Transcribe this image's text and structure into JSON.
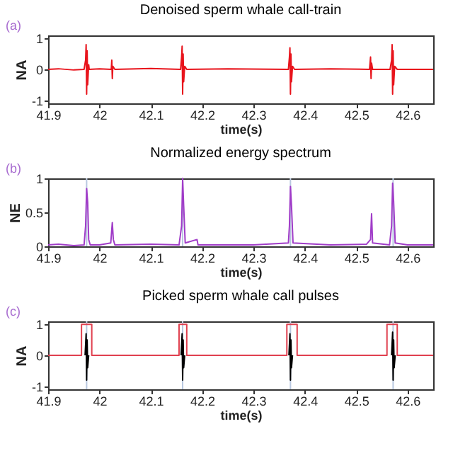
{
  "chart_data": [
    {
      "type": "line",
      "title": "Denoised sperm whale call-train",
      "xlabel": "time(s)",
      "ylabel": "NA",
      "xlim": [
        41.9,
        42.65
      ],
      "xticks": [
        41.9,
        42,
        42.1,
        42.2,
        42.3,
        42.4,
        42.5,
        42.6
      ],
      "ylim": [
        -1.1,
        1.1
      ],
      "yticks": [
        -1,
        0,
        1
      ],
      "annotations": [
        "(a)"
      ],
      "series": [
        {
          "color": "#e8141c",
          "x": [
            41.9,
            41.92,
            41.95,
            41.97,
            41.973,
            41.974,
            41.975,
            41.976,
            41.977,
            41.979,
            41.98,
            42.0,
            42.023,
            42.024,
            42.025,
            42.026,
            42.03,
            42.1,
            42.158,
            42.16,
            42.161,
            42.162,
            42.163,
            42.164,
            42.166,
            42.17,
            42.25,
            42.368,
            42.37,
            42.371,
            42.372,
            42.373,
            42.374,
            42.376,
            42.38,
            42.45,
            42.526,
            42.528,
            42.529,
            42.53,
            42.532,
            42.566,
            42.569,
            42.57,
            42.571,
            42.572,
            42.573,
            42.575,
            42.58,
            42.65
          ],
          "values": [
            0,
            0.02,
            -0.02,
            0,
            0.3,
            0.8,
            -0.8,
            0.6,
            -0.5,
            0.15,
            0,
            0.02,
            0,
            0.3,
            -0.3,
            0.1,
            0,
            0.03,
            0,
            0.4,
            0.75,
            -0.8,
            0.5,
            -0.4,
            0.1,
            0,
            0.02,
            0,
            0.4,
            0.7,
            -0.8,
            0.5,
            -0.4,
            0.1,
            0,
            0.02,
            0,
            0.4,
            -0.3,
            0.2,
            0,
            0,
            0.3,
            0.8,
            -0.8,
            0.6,
            -0.5,
            0.1,
            0,
            0
          ]
        }
      ]
    },
    {
      "type": "line",
      "title": "Normalized energy spectrum",
      "xlabel": "time(s)",
      "ylabel": "NE",
      "xlim": [
        41.9,
        42.65
      ],
      "xticks": [
        41.9,
        42,
        42.1,
        42.2,
        42.3,
        42.4,
        42.5,
        42.6
      ],
      "ylim": [
        0,
        1
      ],
      "yticks": [
        0,
        0.5,
        1
      ],
      "annotations": [
        "(b)"
      ],
      "ref_lines": [
        {
          "axis": "x",
          "value": 41.975,
          "color": "#b8c8e0"
        },
        {
          "axis": "x",
          "value": 42.162,
          "color": "#b8c8e0"
        },
        {
          "axis": "x",
          "value": 42.372,
          "color": "#b8c8e0"
        },
        {
          "axis": "x",
          "value": 42.572,
          "color": "#b8c8e0"
        }
      ],
      "series": [
        {
          "color": "#a03cc8",
          "x": [
            41.9,
            41.92,
            41.95,
            41.97,
            41.973,
            41.975,
            41.977,
            41.979,
            41.982,
            42.0,
            42.022,
            42.025,
            42.027,
            42.03,
            42.1,
            42.155,
            42.16,
            42.162,
            42.164,
            42.167,
            42.19,
            42.192,
            42.3,
            42.368,
            42.37,
            42.372,
            42.374,
            42.377,
            42.45,
            42.52,
            42.528,
            42.53,
            42.532,
            42.565,
            42.569,
            42.571,
            42.573,
            42.576,
            42.6,
            42.65
          ],
          "values": [
            0.02,
            0.03,
            0.01,
            0.02,
            0.3,
            0.85,
            0.65,
            0.1,
            0.02,
            0.02,
            0.05,
            0.35,
            0.1,
            0.02,
            0.03,
            0.02,
            0.3,
            1,
            0.6,
            0.05,
            0.1,
            0.02,
            0.02,
            0.05,
            0.3,
            0.88,
            0.6,
            0.05,
            0.02,
            0.03,
            0.1,
            0.48,
            0.05,
            0.02,
            0.3,
            0.93,
            0.65,
            0.05,
            0.02,
            0.02
          ]
        }
      ]
    },
    {
      "type": "line",
      "title": "Picked sperm whale call pulses",
      "xlabel": "time(s)",
      "ylabel": "NA",
      "xlim": [
        41.9,
        42.65
      ],
      "xticks": [
        41.9,
        42,
        42.1,
        42.2,
        42.3,
        42.4,
        42.5,
        42.6
      ],
      "ylim": [
        -1.1,
        1.1
      ],
      "yticks": [
        -1,
        0,
        1
      ],
      "annotations": [
        "(c)"
      ],
      "ref_lines": [
        {
          "axis": "x",
          "value": 41.975,
          "color": "#b8c8e0"
        },
        {
          "axis": "x",
          "value": 42.162,
          "color": "#b8c8e0"
        },
        {
          "axis": "x",
          "value": 42.372,
          "color": "#b8c8e0"
        },
        {
          "axis": "x",
          "value": 42.572,
          "color": "#b8c8e0"
        }
      ],
      "series": [
        {
          "color": "#e0404f",
          "x": [
            41.9,
            41.965,
            41.965,
            41.985,
            41.985,
            42.155,
            42.155,
            42.17,
            42.17,
            42.365,
            42.365,
            42.385,
            42.385,
            42.56,
            42.56,
            42.58,
            42.58,
            42.65
          ],
          "values": [
            0,
            0,
            1,
            1,
            0,
            0,
            1,
            1,
            0,
            0,
            1,
            1,
            0,
            0,
            1,
            1,
            0,
            0
          ]
        },
        {
          "color": "#000000",
          "x": [
            41.972,
            41.974,
            41.975,
            41.976,
            41.977,
            41.979,
            42.05,
            42.159,
            42.161,
            42.162,
            42.163,
            42.164,
            42.166,
            42.25,
            42.369,
            42.371,
            42.372,
            42.373,
            42.374,
            42.376,
            42.45,
            42.569,
            42.571,
            42.572,
            42.573,
            42.574,
            42.576
          ],
          "values": [
            0,
            0.7,
            -0.8,
            0.5,
            -0.4,
            0,
            null,
            0,
            0.7,
            -0.8,
            0.5,
            -0.4,
            0,
            null,
            0,
            0.7,
            -0.8,
            0.5,
            -0.4,
            0,
            null,
            0,
            0.75,
            -0.8,
            0.5,
            -0.4,
            0
          ]
        }
      ]
    }
  ]
}
